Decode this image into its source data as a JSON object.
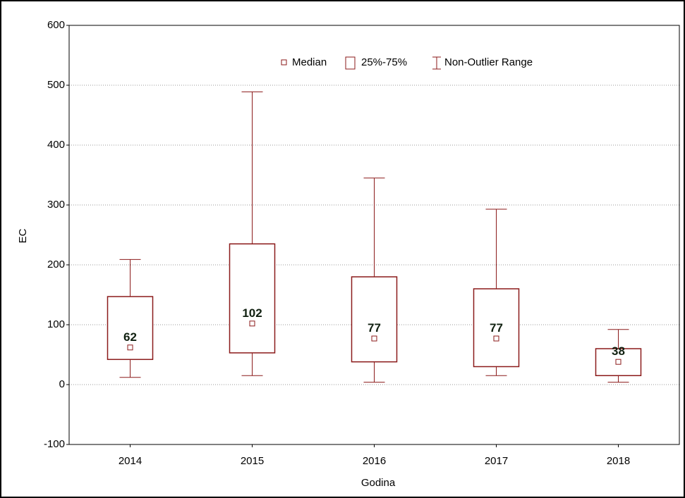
{
  "chart_data": {
    "type": "box",
    "xlabel": "Godina",
    "ylabel": "EC",
    "categories": [
      "2014",
      "2015",
      "2016",
      "2017",
      "2018"
    ],
    "median": [
      62,
      102,
      77,
      77,
      38
    ],
    "q1": [
      42,
      53,
      38,
      30,
      15
    ],
    "q3": [
      147,
      235,
      180,
      160,
      60
    ],
    "min": [
      12,
      15,
      4,
      15,
      4
    ],
    "max": [
      209,
      489,
      345,
      293,
      92
    ],
    "legend": [
      "Median",
      "25%-75%",
      "Non-Outlier Range"
    ],
    "color": "#8b1a1a",
    "ylim": [
      -100,
      600
    ],
    "yticks": [
      -100,
      0,
      100,
      200,
      300,
      400,
      500,
      600
    ],
    "grid": true
  }
}
